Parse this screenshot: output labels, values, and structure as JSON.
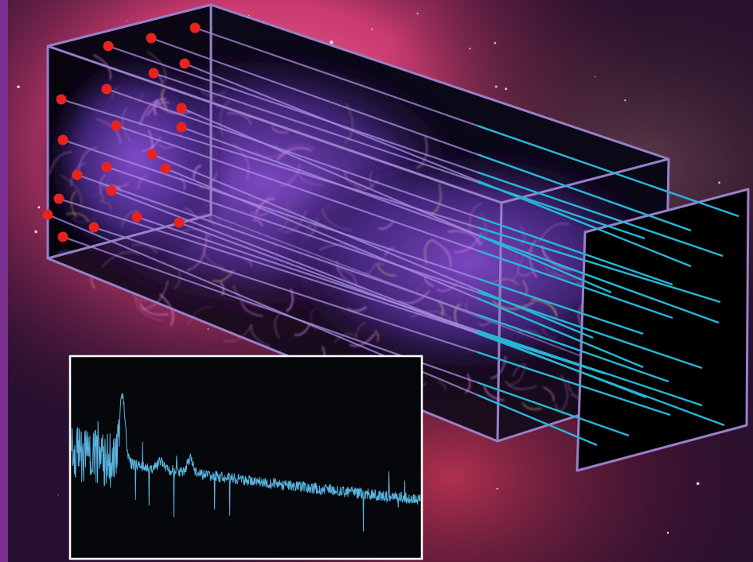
{
  "colors": {
    "background_nebula_pink": "#e0457c",
    "background_nebula_dark": "#2a1030",
    "background_purple_edge": "#7a2f8f",
    "cube_frame": "#9a7fc9",
    "cosmic_web_glow": "#c77dff",
    "cosmic_web_filament": "#f0a0ff",
    "quasar_dot": "#e8231f",
    "sightline": "#27b6d6",
    "spectrum_line": "#5ab4e0",
    "spectrum_frame": "#ffffff",
    "spectrum_background": "#05070a",
    "detector_panel": "#000000"
  },
  "icons": {
    "quasar": "red-dot-icon",
    "sightline": "cyan-line-icon"
  },
  "diagram": {
    "quasar_count": 22,
    "sightline_count": 22,
    "components": [
      "simulation-cube",
      "cosmic-web",
      "quasar-sources",
      "sightlines",
      "detector-plane",
      "spectrum-inset"
    ]
  },
  "chart_data": {
    "type": "line",
    "title": "",
    "xlabel": "",
    "ylabel": "",
    "series": [
      {
        "values": []
      }
    ],
    "grid": false,
    "legend": "none"
  }
}
